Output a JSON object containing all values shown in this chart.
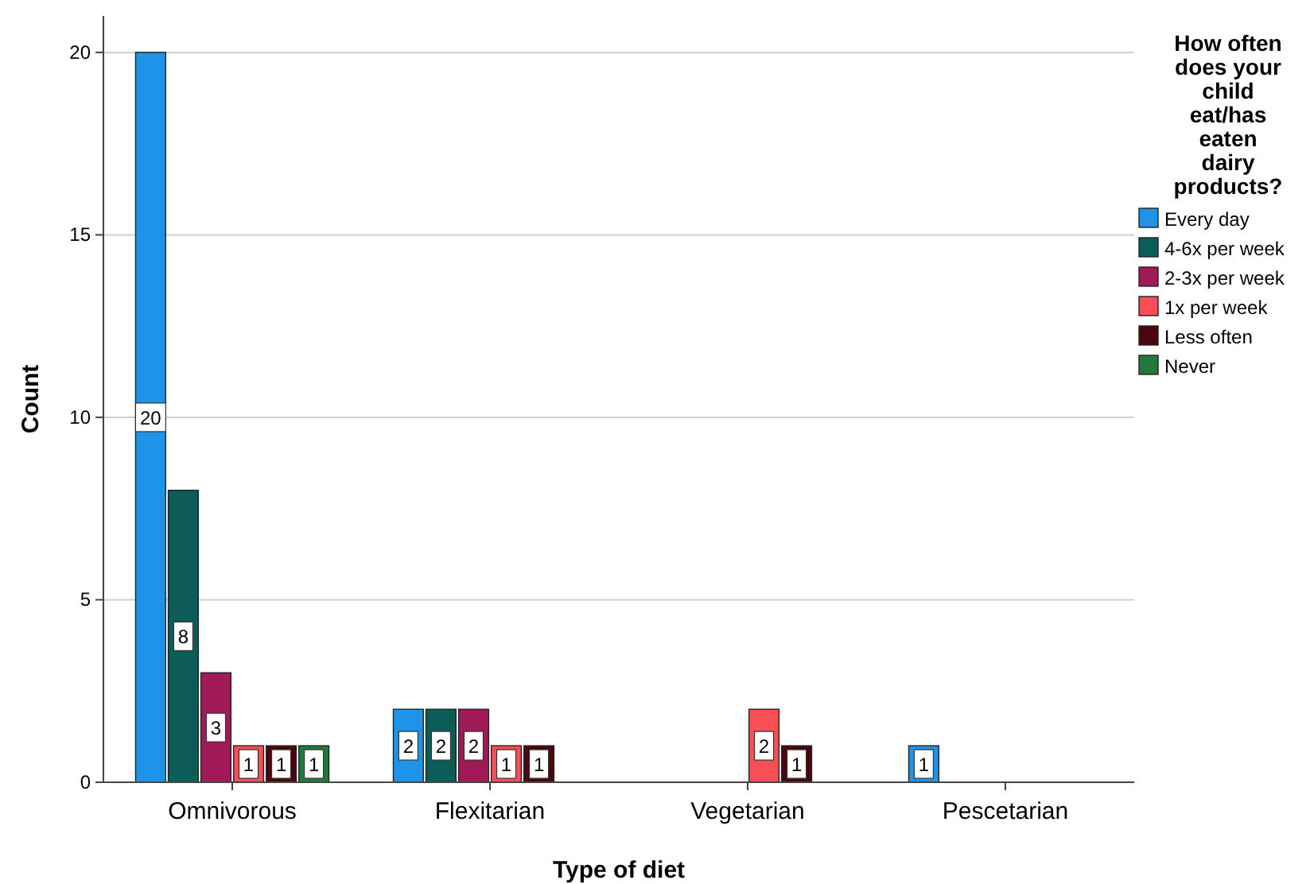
{
  "chart_data": {
    "type": "bar",
    "xlabel": "Type of diet",
    "ylabel": "Count",
    "legend_title": "How often does your child eat/has eaten dairy products?",
    "categories": [
      "Omnivorous",
      "Flexitarian",
      "Vegetarian",
      "Pescetarian"
    ],
    "series": [
      {
        "name": "Every day",
        "color": "#1f93e8",
        "values": [
          20,
          2,
          0,
          1
        ],
        "value_labels": [
          "20",
          "2",
          null,
          "1"
        ]
      },
      {
        "name": "4-6x per week",
        "color": "#0b5e58",
        "values": [
          8,
          2,
          0,
          0
        ],
        "value_labels": [
          "8",
          "2",
          null,
          null
        ]
      },
      {
        "name": "2-3x per week",
        "color": "#a01a58",
        "values": [
          3,
          2,
          0,
          0
        ],
        "value_labels": [
          "3",
          "2",
          null,
          null
        ]
      },
      {
        "name": "1x per week",
        "color": "#f74f55",
        "values": [
          1,
          1,
          2,
          0
        ],
        "value_labels": [
          "1",
          "1",
          "2",
          null
        ]
      },
      {
        "name": "Less often",
        "color": "#4b0610",
        "values": [
          1,
          1,
          1,
          0
        ],
        "value_labels": [
          "1",
          "1",
          "1",
          null
        ]
      },
      {
        "name": "Never",
        "color": "#1f7c3c",
        "values": [
          1,
          0,
          0,
          0
        ],
        "value_labels": [
          "1",
          null,
          null,
          null
        ]
      }
    ],
    "ylim": [
      0,
      21
    ],
    "yticks": [
      0,
      5,
      10,
      15,
      20
    ],
    "grid": "y",
    "legend": "right"
  }
}
